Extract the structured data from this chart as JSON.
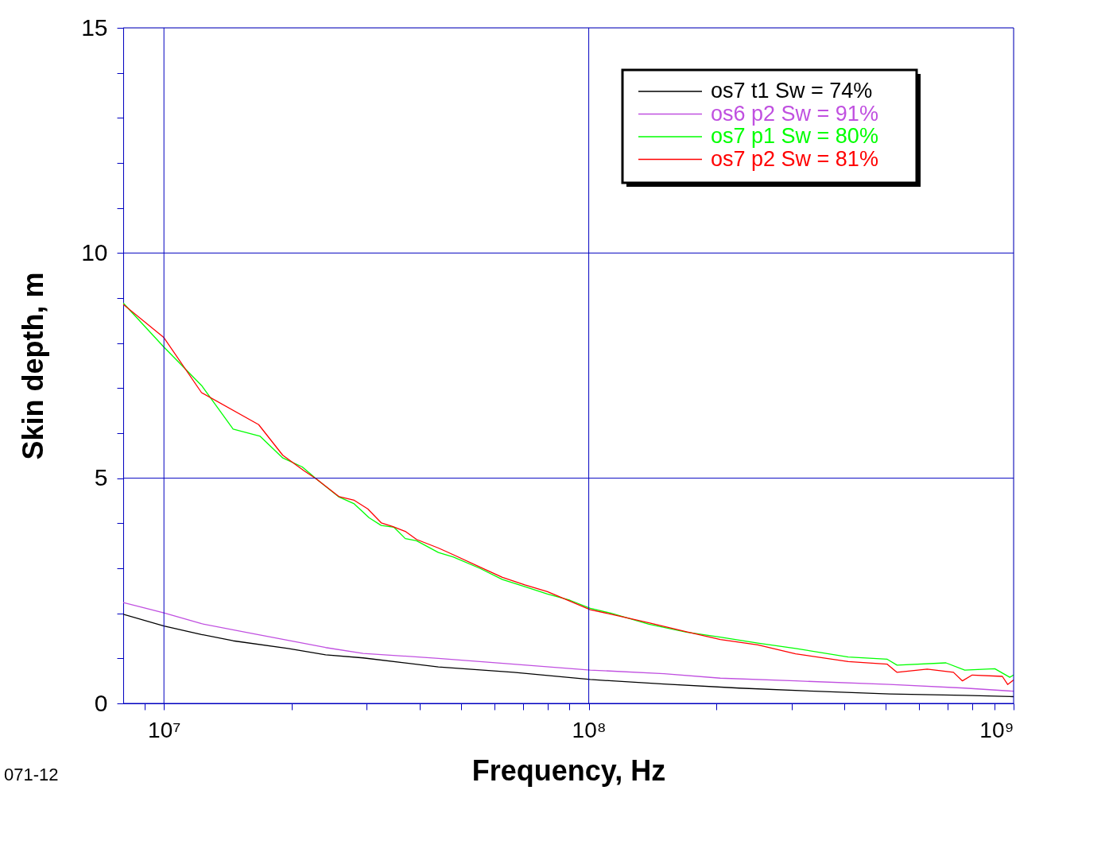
{
  "chart_data": {
    "type": "line",
    "xlabel": "Frequency, Hz",
    "ylabel": "Skin depth, m",
    "log": "x",
    "grid": true,
    "legend": "top right",
    "marker": "none",
    "line_style": "solid",
    "xlim": [
      8020000,
      1000000000
    ],
    "ylim": [
      0,
      15
    ],
    "xticks": [
      {
        "value": 9000000,
        "label": null
      },
      {
        "value": 10000000,
        "label": "10⁷"
      },
      {
        "value": 20000000,
        "label": null
      },
      {
        "value": 30000000,
        "label": null
      },
      {
        "value": 40000000,
        "label": null
      },
      {
        "value": 50000000,
        "label": null
      },
      {
        "value": 60000000,
        "label": null
      },
      {
        "value": 70000000,
        "label": null
      },
      {
        "value": 80000000,
        "label": null
      },
      {
        "value": 90000000,
        "label": null
      },
      {
        "value": 100000000,
        "label": "10⁸"
      },
      {
        "value": 200000000,
        "label": null
      },
      {
        "value": 300000000,
        "label": null
      },
      {
        "value": 400000000,
        "label": null
      },
      {
        "value": 500000000,
        "label": null
      },
      {
        "value": 600000000,
        "label": null
      },
      {
        "value": 700000000,
        "label": null
      },
      {
        "value": 800000000,
        "label": null
      },
      {
        "value": 900000000,
        "label": null
      },
      {
        "value": 1000000000,
        "label": "10⁹"
      }
    ],
    "yticks": [
      0,
      {
        "value": 1,
        "label": null
      },
      {
        "value": 2,
        "label": null
      },
      {
        "value": 3,
        "label": null
      },
      {
        "value": 4,
        "label": null
      },
      5,
      {
        "value": 6,
        "label": null
      },
      {
        "value": 7,
        "label": null
      },
      {
        "value": 8,
        "label": null
      },
      {
        "value": 9,
        "label": null
      },
      10,
      {
        "value": 11,
        "label": null
      },
      {
        "value": 12,
        "label": null
      },
      {
        "value": 13,
        "label": null
      },
      {
        "value": 14,
        "label": null
      },
      15
    ],
    "annotations": [
      "071-12"
    ],
    "series": [
      {
        "name": "os7  t1  Sw = 74%",
        "color": "#000000",
        "x": [
          8020000,
          10000000,
          12260000,
          14550000,
          19590000,
          24020000,
          29440000,
          44260000,
          66530000,
          100800000,
          150300000,
          225900000,
          339600000,
          510500000,
          767400000,
          1000000000
        ],
        "values": [
          1.98,
          1.72,
          1.53,
          1.39,
          1.22,
          1.08,
          1.01,
          0.81,
          0.69,
          0.53,
          0.43,
          0.34,
          0.27,
          0.21,
          0.18,
          0.15
        ]
      },
      {
        "name": "os6  p2  Sw = 91%",
        "color": "#c050e0",
        "x": [
          8020000,
          10000000,
          12260000,
          15980000,
          19590000,
          24020000,
          29440000,
          44260000,
          66530000,
          100800000,
          150300000,
          204000000,
          306700000,
          510500000,
          767400000,
          1000000000
        ],
        "values": [
          2.24,
          2.01,
          1.77,
          1.56,
          1.4,
          1.24,
          1.11,
          1.0,
          0.87,
          0.74,
          0.66,
          0.56,
          0.5,
          0.42,
          0.34,
          0.27
        ]
      },
      {
        "name": "os7 p1  Sw = 80%",
        "color": "#00ff00",
        "x": [
          8020000,
          10000000,
          12260000,
          14550000,
          16850000,
          19040000,
          21170000,
          22860000,
          25850000,
          28050000,
          30420000,
          32470000,
          34800000,
          36990000,
          39330000,
          44260000,
          48020000,
          55390000,
          62610000,
          70720000,
          79910000,
          90320000,
          100800000,
          113000000,
          138600000,
          169800000,
          204000000,
          250000000,
          306700000,
          408000000,
          504200000,
          531700000,
          693000000,
          767400000,
          903200000,
          979500000,
          1000000000
        ],
        "values": [
          8.89,
          7.91,
          7.06,
          6.09,
          5.93,
          5.45,
          5.25,
          4.98,
          4.58,
          4.43,
          4.12,
          3.95,
          3.91,
          3.66,
          3.61,
          3.35,
          3.25,
          3.0,
          2.75,
          2.59,
          2.43,
          2.29,
          2.11,
          2.0,
          1.76,
          1.58,
          1.47,
          1.34,
          1.22,
          1.03,
          0.98,
          0.85,
          0.9,
          0.74,
          0.77,
          0.58,
          0.63
        ]
      },
      {
        "name": "os7 p2  Sw = 81%",
        "color": "#ff0000",
        "x": [
          8020000,
          10000000,
          12260000,
          16710000,
          19040000,
          21330000,
          22860000,
          25850000,
          28050000,
          30180000,
          32470000,
          34520000,
          36990000,
          39330000,
          44260000,
          48020000,
          55390000,
          62610000,
          70720000,
          79910000,
          90320000,
          100800000,
          113000000,
          138600000,
          169800000,
          204000000,
          250000000,
          306700000,
          408000000,
          504200000,
          531700000,
          626100000,
          721800000,
          757800000,
          799100000,
          940800000,
          968300000,
          1000000000
        ],
        "values": [
          8.86,
          8.12,
          6.9,
          6.19,
          5.51,
          5.17,
          4.98,
          4.59,
          4.51,
          4.32,
          4.01,
          3.93,
          3.82,
          3.64,
          3.45,
          3.3,
          3.03,
          2.8,
          2.63,
          2.48,
          2.27,
          2.08,
          1.98,
          1.79,
          1.59,
          1.42,
          1.3,
          1.1,
          0.93,
          0.87,
          0.69,
          0.76,
          0.69,
          0.5,
          0.63,
          0.6,
          0.42,
          0.52
        ]
      }
    ]
  }
}
